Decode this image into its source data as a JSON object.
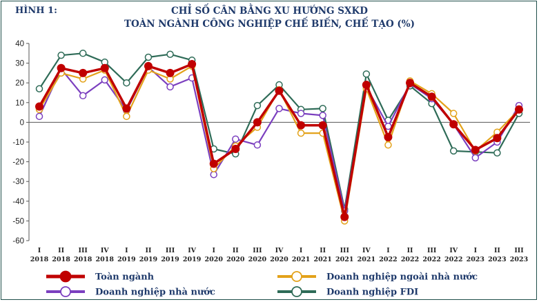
{
  "figure_label": "HÌNH 1:",
  "title_line1": "CHỈ SỐ CÂN BẰNG XU HƯỚNG SXKD",
  "title_line2": "TOÀN NGÀNH CÔNG NGHIỆP CHẾ BIẾN, CHẾ TẠO (%)",
  "chart_data": {
    "type": "line",
    "title": "CHỈ SỐ CÂN BẰNG XU HƯỚNG SXKD TOÀN NGÀNH CÔNG NGHIỆP CHẾ BIẾN, CHẾ TẠO (%)",
    "ylim": [
      -60,
      40
    ],
    "yticks": [
      40,
      30,
      20,
      10,
      0,
      -10,
      -20,
      -30,
      -40,
      -50,
      -60
    ],
    "grid": false,
    "legend_position": "bottom",
    "categories": [
      {
        "q": "I",
        "y": "2018"
      },
      {
        "q": "II",
        "y": "2018"
      },
      {
        "q": "III",
        "y": "2018"
      },
      {
        "q": "IV",
        "y": "2018"
      },
      {
        "q": "I",
        "y": "2019"
      },
      {
        "q": "II",
        "y": "2019"
      },
      {
        "q": "III",
        "y": "2019"
      },
      {
        "q": "IV",
        "y": "2019"
      },
      {
        "q": "I",
        "y": "2020"
      },
      {
        "q": "II",
        "y": "2020"
      },
      {
        "q": "III",
        "y": "2020"
      },
      {
        "q": "IV",
        "y": "2020"
      },
      {
        "q": "I",
        "y": "2021"
      },
      {
        "q": "II",
        "y": "2021"
      },
      {
        "q": "III",
        "y": "2021"
      },
      {
        "q": "IV",
        "y": "2021"
      },
      {
        "q": "I",
        "y": "2022"
      },
      {
        "q": "II",
        "y": "2022"
      },
      {
        "q": "III",
        "y": "2022"
      },
      {
        "q": "IV",
        "y": "2022"
      },
      {
        "q": "I",
        "y": "2023"
      },
      {
        "q": "II",
        "y": "2023"
      },
      {
        "q": "III",
        "y": "2023"
      }
    ],
    "series": [
      {
        "name": "Doanh nghiệp FDI",
        "color": "#2e6b57",
        "values": [
          17,
          34,
          35,
          30.5,
          20,
          33,
          34.5,
          31.5,
          -13.5,
          -16,
          8.5,
          19,
          6.5,
          7,
          -44,
          24.5,
          1,
          18.5,
          9.5,
          -14.5,
          -15,
          -15.5,
          4.5
        ]
      },
      {
        "name": "Doanh nghiệp nhà nước",
        "color": "#7b3fbf",
        "values": [
          3,
          27,
          13.5,
          21.5,
          6,
          28,
          18,
          22.5,
          -26.5,
          -8.5,
          -11.5,
          7,
          4.5,
          3.5,
          -45,
          18,
          -2,
          19.5,
          12,
          -1,
          -18,
          -10,
          8.5
        ]
      },
      {
        "name": "Doanh nghiệp ngoài nhà nước",
        "color": "#e3a21a",
        "values": [
          6.5,
          25,
          22,
          26.5,
          3,
          26.5,
          22,
          28.5,
          -23.5,
          -12,
          -2.5,
          16.5,
          -5.5,
          -5.5,
          -50,
          17,
          -11.5,
          21,
          14.5,
          4.5,
          -14.5,
          -5,
          6.5
        ]
      },
      {
        "name": "Toàn ngành",
        "color": "#c00000",
        "values": [
          8,
          27.5,
          25,
          27.5,
          7,
          28.5,
          25,
          29.5,
          -21,
          -13.5,
          0,
          16,
          -1.5,
          -1.5,
          -48,
          19,
          -7.5,
          20,
          13,
          -1,
          -14,
          -8,
          6.5
        ]
      }
    ]
  }
}
